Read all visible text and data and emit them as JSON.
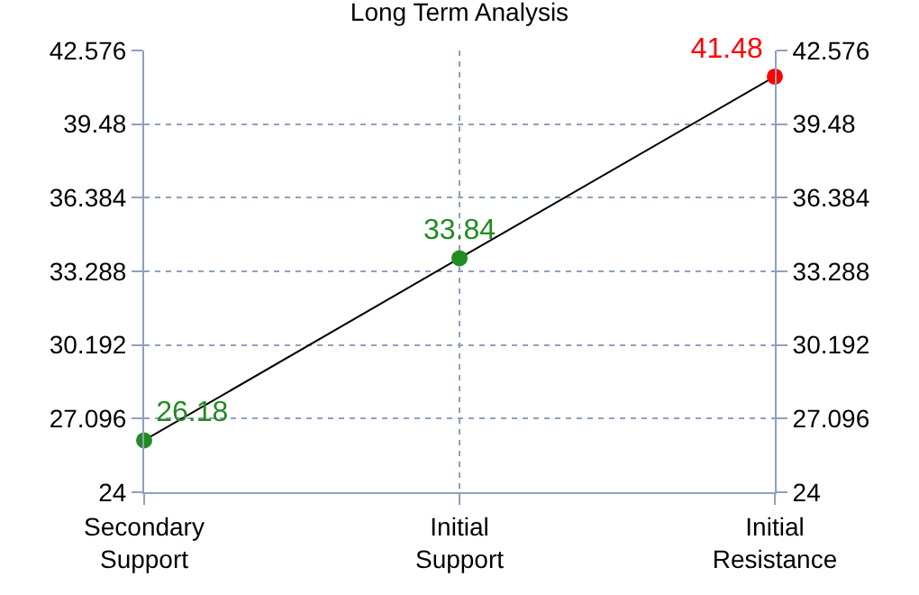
{
  "chart_data": {
    "type": "line",
    "title": "Long Term Analysis",
    "categories": [
      "Secondary Support",
      "Initial Support",
      "Initial Resistance"
    ],
    "series": [
      {
        "color": "#000000",
        "colors": [
          "#228b22",
          "#228b22",
          "#ff0000"
        ],
        "values": [
          26.18,
          33.84,
          41.48
        ]
      }
    ],
    "ylim": [
      24,
      42.576
    ],
    "yticks": [
      24,
      27.096,
      30.192,
      33.288,
      36.384,
      39.48,
      42.576
    ],
    "y2lim": [
      24,
      42.576
    ],
    "y2ticks": [
      24,
      27.096,
      30.192,
      33.288,
      36.384,
      39.48,
      42.576
    ],
    "grid": true,
    "marker": "circle",
    "line_style": "solid",
    "data_labels": true,
    "legend": false
  }
}
